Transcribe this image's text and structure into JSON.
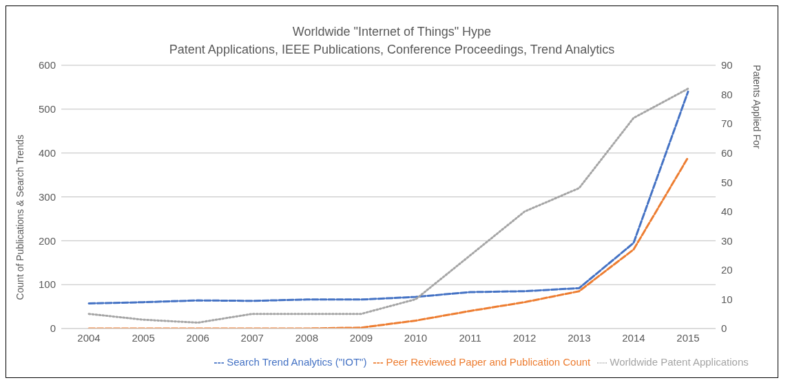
{
  "chart_data": {
    "type": "line",
    "title": "Worldwide \"Internet of Things\" Hype",
    "subtitle": "Patent Applications, IEEE Publications, Conference Proceedings, Trend Analytics",
    "ylabel": "Count of Publications & Search Trends",
    "y2label": "Patents Applied For",
    "categories": [
      "2004",
      "2005",
      "2006",
      "2007",
      "2008",
      "2009",
      "2010",
      "2011",
      "2012",
      "2013",
      "2014",
      "2015"
    ],
    "series": [
      {
        "name": "Search Trend Analytics (\"IOT\")",
        "color": "#4472c4",
        "line_style": "dashed",
        "values": [
          57,
          60,
          64,
          63,
          66,
          66,
          72,
          83,
          85,
          92,
          195,
          540
        ]
      },
      {
        "name": "Peer Reviewed Paper and Publication Count",
        "color": "#ed7d31",
        "line_style": "dashed",
        "values": [
          0,
          0,
          0,
          0,
          0,
          2,
          18,
          40,
          60,
          85,
          180,
          390
        ]
      },
      {
        "name": "Worldwide Patent Applications",
        "color": "#a5a5a5",
        "line_style": "dotted",
        "axis": "y2",
        "values": [
          5,
          3,
          2,
          5,
          5,
          5,
          10,
          25,
          40,
          48,
          72,
          82
        ]
      }
    ],
    "ylim": [
      0,
      600
    ],
    "yticks": [
      0,
      100,
      200,
      300,
      400,
      500,
      600
    ],
    "y2lim": [
      0,
      90
    ],
    "y2ticks": [
      0,
      10,
      20,
      30,
      40,
      50,
      60,
      70,
      80,
      90
    ],
    "grid": "y",
    "legend": "bottom",
    "marker": "none"
  }
}
